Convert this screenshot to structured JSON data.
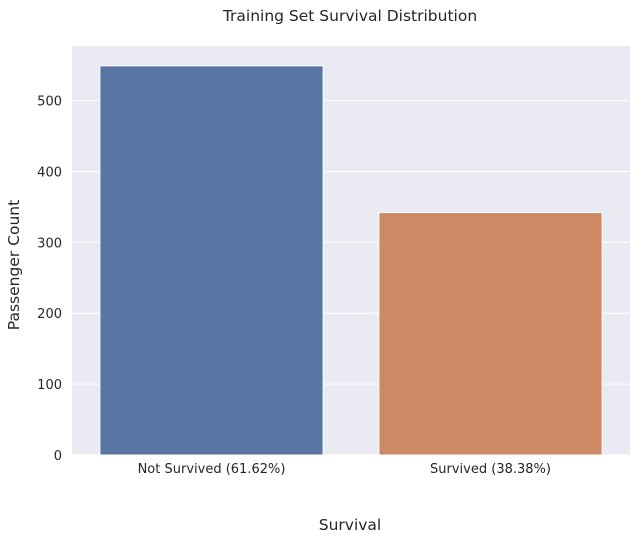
{
  "chart_data": {
    "type": "bar",
    "title": "Training Set Survival Distribution",
    "xlabel": "Survival",
    "ylabel": "Passenger Count",
    "categories": [
      "Not Survived (61.62%)",
      "Survived (38.38%)"
    ],
    "values": [
      549,
      342
    ],
    "colors": [
      "#5875a4",
      "#cc8963"
    ],
    "ylim": [
      0,
      577
    ],
    "yticks": [
      0,
      100,
      200,
      300,
      400,
      500
    ],
    "grid": true,
    "background": "#eaeaf2"
  }
}
